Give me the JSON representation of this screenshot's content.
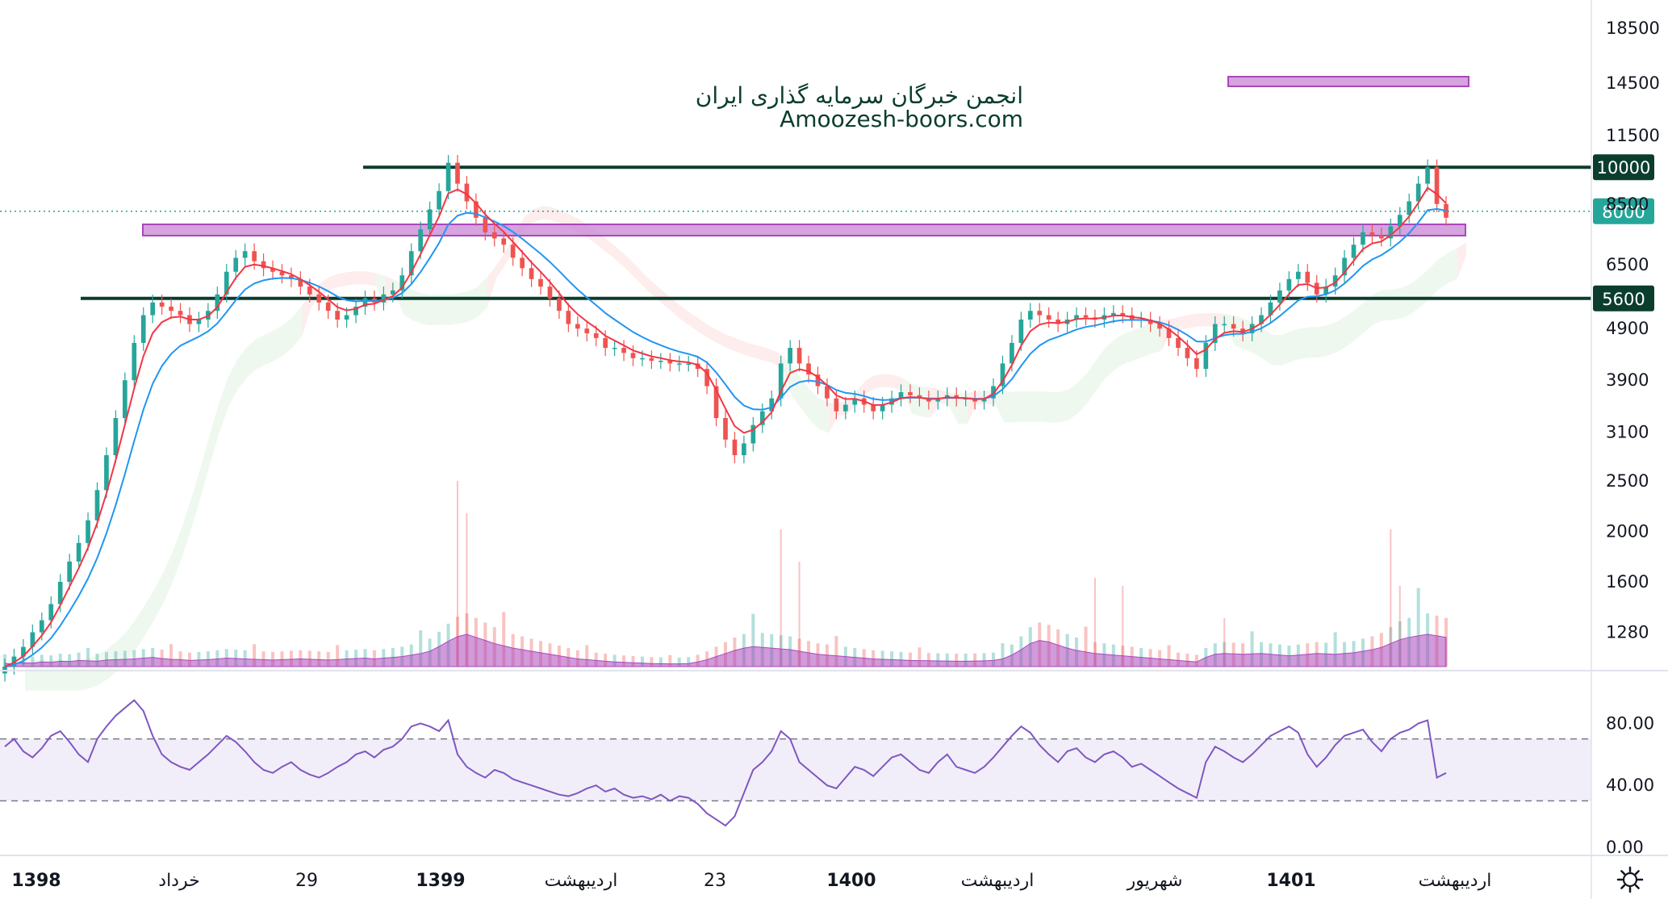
{
  "watermark": {
    "title": "انجمن خبرگان سرمایه گذاری ایران",
    "site": "Amoozesh-boors.com"
  },
  "price_axis": {
    "ticks": [
      "18500",
      "14500",
      "11500",
      "10000",
      "8500",
      "8000",
      "6500",
      "5600",
      "4900",
      "3900",
      "3100",
      "2500",
      "2000",
      "1600",
      "1280"
    ],
    "scale": "log"
  },
  "rsi_axis": {
    "ticks": [
      "80.00",
      "40.00",
      "0.00"
    ],
    "upper_band": 70,
    "lower_band": 30
  },
  "time_axis": {
    "labels": [
      {
        "text": "1398",
        "bold": true
      },
      {
        "text": "خرداد",
        "bold": false
      },
      {
        "text": "29",
        "bold": false
      },
      {
        "text": "1399",
        "bold": true
      },
      {
        "text": "اردیبهشت",
        "bold": false
      },
      {
        "text": "23",
        "bold": false
      },
      {
        "text": "1400",
        "bold": true
      },
      {
        "text": "اردیبهشت",
        "bold": false
      },
      {
        "text": "شهریور",
        "bold": false
      },
      {
        "text": "1401",
        "bold": true
      },
      {
        "text": "اردیبهشت",
        "bold": false
      }
    ],
    "settings_icon": "gear-icon"
  },
  "levels": [
    {
      "value": 10000,
      "label": "10000",
      "color": "#0b3d2e"
    },
    {
      "value": 5600,
      "label": "5600",
      "color": "#0b3d2e"
    }
  ],
  "current_price": {
    "value": 8000,
    "label": "8000",
    "color": "#26a69a"
  },
  "colors": {
    "up": "#26a69a",
    "down": "#ef5350",
    "ema_fast": "#f23645",
    "ema_slow": "#2196f3",
    "zone": "#ce93d8",
    "zone_border": "#9c27b0",
    "rsi": "#7e57c2",
    "volume_ma": "#ab47bc"
  },
  "chart_data": {
    "type": "line",
    "series": [
      {
        "values": [
          1100,
          1150,
          1200,
          1280,
          1350,
          1450,
          1600,
          1750,
          1900,
          2100,
          2400,
          2800,
          3300,
          3900,
          4600,
          5200,
          5500,
          5400,
          5300,
          5200,
          5000,
          5100,
          5300,
          5700,
          6300,
          6700,
          6900,
          6600,
          6400,
          6300,
          6200,
          6100,
          5900,
          5700,
          5500,
          5300,
          5100,
          5200,
          5400,
          5600,
          5500,
          5700,
          5800,
          6200,
          6900,
          7600,
          8300,
          9000,
          10200,
          9300,
          8600,
          8000,
          7500,
          7300,
          7100,
          6700,
          6400,
          6100,
          5900,
          5600,
          5300,
          5000,
          4900,
          4800,
          4700,
          4500,
          4500,
          4400,
          4300,
          4300,
          4250,
          4250,
          4200,
          4200,
          4200,
          4100,
          3800,
          3300,
          3000,
          2800,
          2950,
          3200,
          3400,
          3600,
          4200,
          4500,
          4200,
          4000,
          3800,
          3600,
          3400,
          3500,
          3600,
          3500,
          3400,
          3500,
          3600,
          3700,
          3650,
          3600,
          3550,
          3600,
          3650,
          3600,
          3600,
          3550,
          3600,
          3800,
          4200,
          4600,
          5100,
          5300,
          5200,
          5100,
          5000,
          5100,
          5200,
          5150,
          5100,
          5200,
          5250,
          5200,
          5100,
          5100,
          5000,
          4900,
          4700,
          4500,
          4300,
          4100,
          4600,
          5000,
          5000,
          4900,
          4800,
          5000,
          5200,
          5500,
          5800,
          6100,
          6300,
          6000,
          5700,
          5900,
          6200,
          6700,
          7100,
          7500,
          7400,
          7300,
          7700,
          8100,
          8600,
          9300,
          10000,
          8500,
          8000
        ]
      }
    ],
    "ylim": [
      1100,
      19500
    ],
    "yscale": "log",
    "rsi_values": [
      65,
      70,
      62,
      58,
      64,
      72,
      75,
      68,
      60,
      55,
      70,
      78,
      85,
      90,
      95,
      88,
      72,
      60,
      55,
      52,
      50,
      55,
      60,
      66,
      72,
      68,
      62,
      55,
      50,
      48,
      52,
      55,
      50,
      47,
      45,
      48,
      52,
      55,
      60,
      62,
      58,
      63,
      65,
      70,
      78,
      80,
      78,
      75,
      82,
      60,
      52,
      48,
      45,
      50,
      48,
      44,
      42,
      40,
      38,
      36,
      34,
      33,
      35,
      38,
      40,
      36,
      38,
      34,
      32,
      33,
      31,
      34,
      30,
      33,
      32,
      28,
      22,
      18,
      14,
      20,
      35,
      50,
      55,
      62,
      75,
      70,
      55,
      50,
      45,
      40,
      38,
      45,
      52,
      50,
      46,
      52,
      58,
      60,
      55,
      50,
      48,
      55,
      60,
      52,
      50,
      48,
      52,
      58,
      65,
      72,
      78,
      74,
      66,
      60,
      55,
      62,
      64,
      58,
      55,
      60,
      62,
      58,
      52,
      54,
      50,
      46,
      42,
      38,
      35,
      32,
      55,
      65,
      62,
      58,
      55,
      60,
      66,
      72,
      75,
      78,
      74,
      60,
      52,
      58,
      66,
      72,
      74,
      76,
      68,
      62,
      70,
      74,
      76,
      80,
      82,
      45,
      48
    ],
    "volume_values": [
      40,
      35,
      50,
      45,
      60,
      55,
      70,
      65,
      80,
      75,
      70,
      85,
      90,
      95,
      100,
      110,
      120,
      105,
      95,
      90,
      80,
      85,
      90,
      100,
      110,
      105,
      100,
      95,
      90,
      85,
      90,
      95,
      100,
      95,
      90,
      85,
      90,
      100,
      105,
      110,
      100,
      110,
      120,
      130,
      150,
      170,
      200,
      260,
      330,
      390,
      420,
      380,
      340,
      300,
      270,
      240,
      220,
      200,
      180,
      160,
      140,
      120,
      100,
      90,
      80,
      70,
      60,
      55,
      50,
      45,
      40,
      38,
      36,
      35,
      40,
      60,
      90,
      130,
      170,
      210,
      240,
      260,
      250,
      240,
      230,
      220,
      200,
      180,
      160,
      150,
      140,
      130,
      120,
      110,
      100,
      95,
      90,
      85,
      80,
      78,
      76,
      74,
      72,
      70,
      70,
      72,
      75,
      80,
      100,
      150,
      220,
      300,
      340,
      320,
      280,
      240,
      210,
      190,
      170,
      160,
      150,
      140,
      130,
      120,
      110,
      100,
      90,
      80,
      70,
      60,
      120,
      160,
      170,
      165,
      160,
      165,
      170,
      160,
      150,
      140,
      150,
      160,
      170,
      165,
      160,
      170,
      180,
      200,
      220,
      250,
      300,
      350,
      380,
      400,
      420,
      400,
      380
    ]
  }
}
